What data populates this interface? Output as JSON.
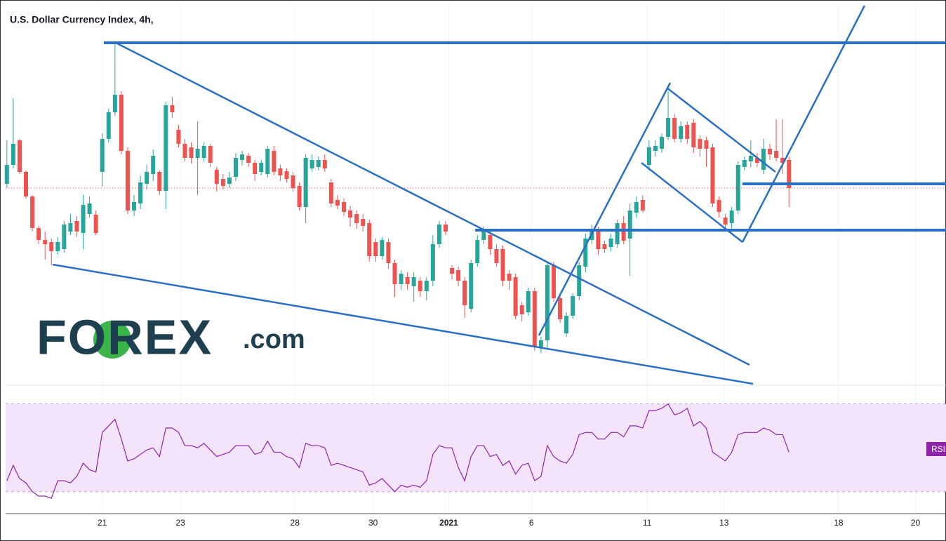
{
  "chart_data": [
    {
      "type": "candlestick",
      "title": "U.S. Dollar Currency Index, 4h,",
      "up_color": "#26a69a",
      "down_color": "#ef5350",
      "ylim": [
        0,
        540
      ],
      "xlim": [
        -0.2,
        147.7
      ],
      "xticks": [
        {
          "value": 15.0,
          "label": "21"
        },
        {
          "value": 27.3,
          "label": "23"
        },
        {
          "value": 45.3,
          "label": "28"
        },
        {
          "value": 57.6,
          "label": "30"
        },
        {
          "value": 69.5,
          "label": "2021"
        },
        {
          "value": 82.5,
          "label": "6"
        },
        {
          "value": 100.7,
          "label": "11"
        },
        {
          "value": 112.8,
          "label": "13"
        },
        {
          "value": 130.8,
          "label": "18"
        },
        {
          "value": 142.9,
          "label": "20"
        }
      ],
      "grid": true,
      "open": [
        286,
        313,
        348,
        303,
        268,
        223,
        206,
        203,
        190,
        193,
        218,
        233,
        216,
        243,
        242,
        303,
        350,
        388,
        413,
        333,
        248,
        258,
        286,
        300,
        303,
        276,
        398,
        363,
        343,
        338,
        323,
        323,
        340,
        306,
        293,
        286,
        296,
        320,
        326,
        316,
        303,
        300,
        333,
        308,
        304,
        298,
        283,
        253,
        308,
        310,
        320,
        288,
        263,
        260,
        248,
        243,
        236,
        230,
        203,
        183,
        203,
        173,
        143,
        153,
        140,
        148,
        133,
        148,
        200,
        228,
        166,
        163,
        148,
        108,
        173,
        206,
        213,
        193,
        193,
        158,
        153,
        113,
        103,
        133,
        53,
        63,
        170,
        123,
        73,
        98,
        126,
        168,
        206,
        220,
        200,
        196,
        200,
        230,
        208,
        245,
        263,
        313,
        333,
        336,
        353,
        380,
        350,
        370,
        373,
        350,
        348,
        338,
        263,
        238,
        230,
        248,
        310,
        318,
        323,
        306,
        336,
        333,
        323,
        320
      ],
      "high": [
        348,
        408,
        350,
        305,
        270,
        226,
        218,
        208,
        210,
        233,
        243,
        240,
        270,
        268,
        248,
        358,
        393,
        487,
        418,
        338,
        270,
        298,
        313,
        335,
        305,
        403,
        410,
        370,
        350,
        345,
        375,
        345,
        343,
        310,
        300,
        303,
        330,
        333,
        330,
        320,
        320,
        340,
        340,
        313,
        308,
        303,
        288,
        328,
        328,
        325,
        328,
        293,
        270,
        265,
        255,
        248,
        243,
        235,
        208,
        210,
        208,
        178,
        163,
        160,
        160,
        153,
        153,
        213,
        233,
        233,
        170,
        168,
        153,
        178,
        213,
        225,
        220,
        200,
        198,
        163,
        158,
        118,
        138,
        138,
        68,
        175,
        175,
        128,
        103,
        130,
        175,
        215,
        228,
        225,
        205,
        215,
        235,
        240,
        258,
        268,
        270,
        348,
        348,
        358,
        418,
        385,
        375,
        375,
        378,
        355,
        353,
        343,
        268,
        243,
        253,
        318,
        325,
        348,
        330,
        350,
        343,
        378,
        378,
        325
      ],
      "low": [
        280,
        308,
        300,
        265,
        218,
        200,
        178,
        170,
        185,
        188,
        213,
        210,
        193,
        238,
        213,
        282,
        345,
        383,
        328,
        243,
        240,
        250,
        278,
        290,
        270,
        250,
        380,
        338,
        318,
        315,
        270,
        318,
        310,
        275,
        278,
        280,
        290,
        312,
        310,
        290,
        298,
        295,
        298,
        290,
        288,
        275,
        248,
        230,
        303,
        305,
        303,
        253,
        250,
        240,
        225,
        222,
        218,
        175,
        175,
        178,
        165,
        125,
        135,
        135,
        118,
        125,
        120,
        140,
        195,
        213,
        150,
        140,
        95,
        103,
        168,
        200,
        185,
        168,
        140,
        135,
        93,
        90,
        98,
        48,
        45,
        50,
        118,
        88,
        68,
        93,
        120,
        160,
        200,
        185,
        188,
        190,
        195,
        200,
        155,
        238,
        245,
        305,
        325,
        330,
        348,
        345,
        345,
        343,
        330,
        325,
        310,
        253,
        238,
        222,
        220,
        243,
        305,
        310,
        310,
        300,
        320,
        318,
        300,
        253
      ],
      "close": [
        313,
        343,
        303,
        268,
        223,
        206,
        200,
        190,
        203,
        228,
        230,
        218,
        256,
        258,
        216,
        350,
        388,
        413,
        333,
        248,
        260,
        288,
        303,
        326,
        276,
        398,
        388,
        343,
        323,
        323,
        336,
        340,
        316,
        286,
        283,
        295,
        323,
        328,
        316,
        300,
        316,
        336,
        303,
        298,
        293,
        280,
        253,
        323,
        320,
        320,
        308,
        258,
        255,
        246,
        238,
        230,
        226,
        183,
        183,
        206,
        173,
        143,
        158,
        143,
        153,
        133,
        148,
        200,
        228,
        218,
        158,
        148,
        113,
        173,
        206,
        220,
        193,
        173,
        148,
        148,
        98,
        100,
        133,
        53,
        63,
        170,
        123,
        93,
        98,
        126,
        170,
        208,
        220,
        193,
        193,
        208,
        230,
        205,
        248,
        260,
        248,
        338,
        340,
        353,
        380,
        350,
        368,
        350,
        338,
        336,
        336,
        258,
        246,
        228,
        248,
        313,
        320,
        326,
        316,
        336,
        328,
        323,
        316,
        280
      ]
    },
    {
      "type": "line",
      "name": "RSI",
      "color": "#8e24aa",
      "ylim": [
        20,
        75
      ],
      "levels": [
        30,
        70
      ],
      "values": [
        35,
        42,
        36,
        34,
        30,
        28,
        28,
        27,
        35,
        35,
        34,
        37,
        43,
        40,
        39,
        57,
        60,
        63,
        54,
        44,
        45,
        47,
        49,
        50,
        46,
        59,
        59,
        57,
        51,
        51,
        50,
        52,
        49,
        46,
        47,
        48,
        51,
        51,
        51,
        47,
        48,
        53,
        48,
        48,
        46,
        45,
        41,
        52,
        51,
        51,
        50,
        42,
        43,
        42,
        41,
        40,
        39,
        33,
        34,
        36,
        33,
        30,
        33,
        32,
        33,
        32,
        35,
        47,
        51,
        50,
        50,
        41,
        35,
        46,
        51,
        51,
        46,
        47,
        42,
        44,
        38,
        42,
        43,
        35,
        37,
        51,
        46,
        44,
        43,
        47,
        56,
        57,
        57,
        54,
        54,
        57,
        57,
        55,
        60,
        60,
        59,
        67,
        67,
        68,
        70,
        65,
        66,
        68,
        60,
        62,
        59,
        48,
        46,
        44,
        48,
        56,
        57,
        57,
        57,
        59,
        58,
        56,
        56,
        48
      ]
    }
  ],
  "logo": {
    "name": "FOREX",
    "suffix": ".com"
  }
}
